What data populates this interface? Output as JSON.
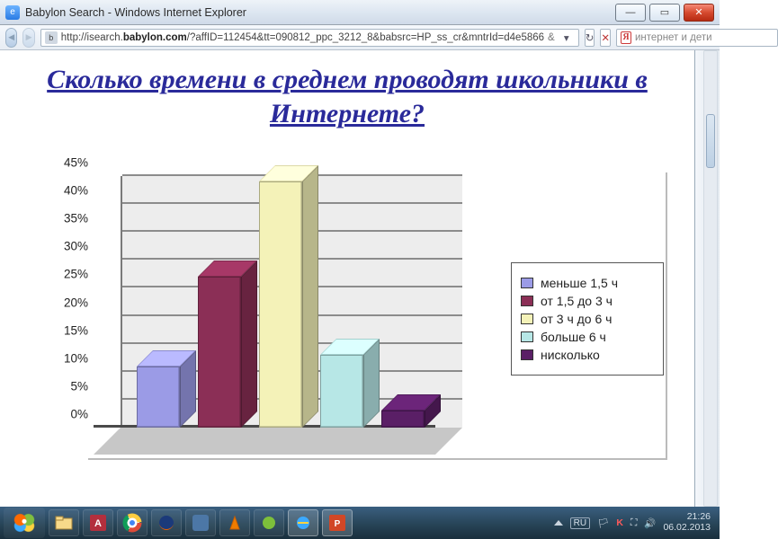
{
  "window": {
    "title": "Babylon Search - Windows Internet Explorer"
  },
  "toolbar": {
    "url_prefix": "http://isearch.",
    "url_host": "babylon.com",
    "url_rest": "/?affID=112454&tt=090812_ppc_3212_8&babsrc=HP_ss_cr&mntrId=d4e5866",
    "url_tail_glyph": "&",
    "search_placeholder": "интернет и дети"
  },
  "heading": "Сколько времени в среднем проводят школьники в Интернете?",
  "chart": {
    "type": "bar",
    "y_ticks": [
      "0%",
      "5%",
      "10%",
      "15%",
      "20%",
      "25%",
      "30%",
      "35%",
      "40%",
      "45%"
    ],
    "y_max": 45,
    "series": [
      {
        "label": "меньше 1,5 ч",
        "value": 11,
        "color": "#9b9be6"
      },
      {
        "label": "от 1,5 до 3 ч",
        "value": 27,
        "color": "#8b2f56"
      },
      {
        "label": "от 3 ч до 6 ч",
        "value": 44,
        "color": "#f4f2b8"
      },
      {
        "label": "больше 6 ч",
        "value": 13,
        "color": "#b7e7e6"
      },
      {
        "label": "нисколько",
        "value": 3,
        "color": "#5a1f66"
      }
    ],
    "backwall_color": "#ededed",
    "floor_color": "#c7c7c7",
    "grid_color": "#8c8c8c",
    "label_fontsize": 14
  },
  "taskbar": {
    "time": "21:26",
    "date": "06.02.2013"
  }
}
